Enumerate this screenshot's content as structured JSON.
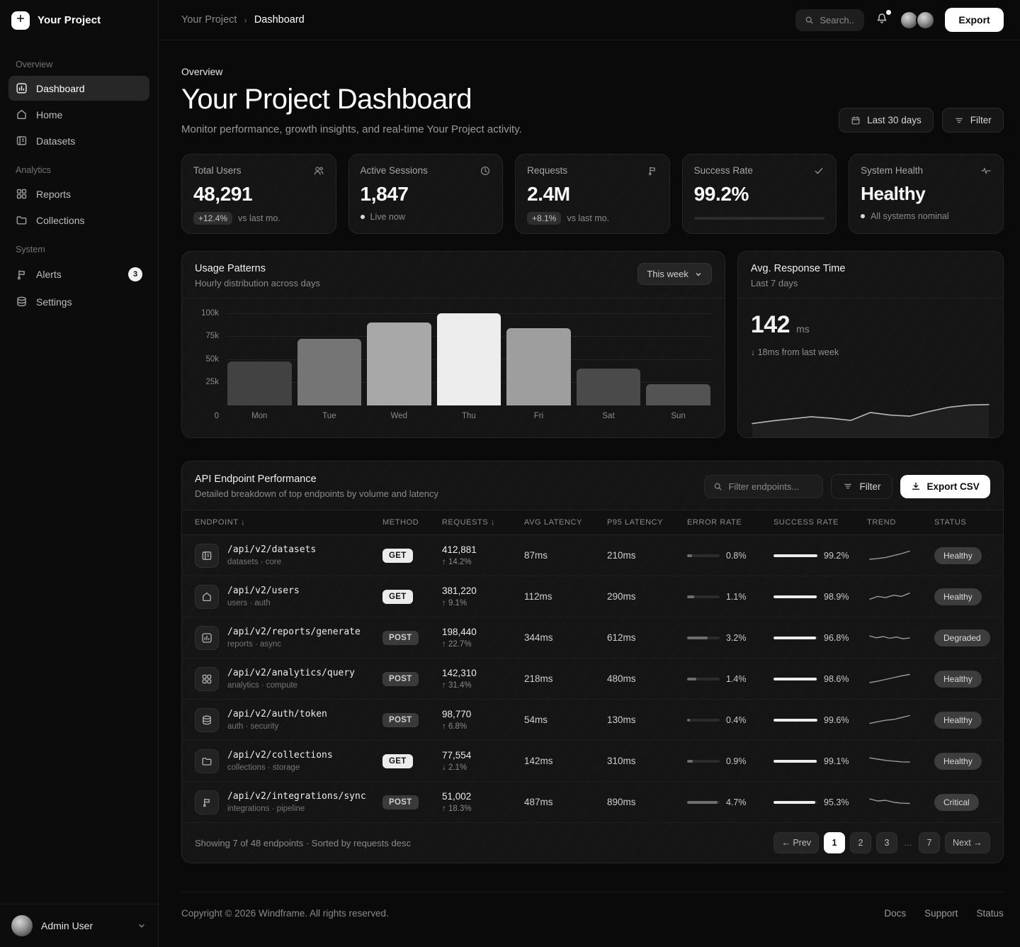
{
  "app": {
    "brand": "Your Project",
    "breadcrumb": {
      "root": "Your Project",
      "separator": "›",
      "current": "Dashboard"
    },
    "search_placeholder": "Search...",
    "export_label": "Export"
  },
  "sidebar": {
    "sections": [
      {
        "label": "Overview",
        "items": [
          {
            "label": "Dashboard",
            "icon": "dashboard-icon",
            "active": true
          },
          {
            "label": "Home",
            "icon": "home-icon"
          },
          {
            "label": "Datasets",
            "icon": "datasets-icon"
          }
        ]
      },
      {
        "label": "Analytics",
        "items": [
          {
            "label": "Reports",
            "icon": "reports-icon"
          },
          {
            "label": "Collections",
            "icon": "collections-icon"
          }
        ]
      },
      {
        "label": "System",
        "items": [
          {
            "label": "Alerts",
            "icon": "alerts-icon",
            "badge": "3"
          },
          {
            "label": "Settings",
            "icon": "settings-icon"
          }
        ]
      }
    ],
    "user": {
      "name": "Admin User"
    }
  },
  "page": {
    "eyebrow": "Overview",
    "title": "Your Project Dashboard",
    "subtitle": "Monitor performance, growth insights, and real-time Your Project activity.",
    "range_button": "Last 30 days",
    "filter_button": "Filter"
  },
  "kpis": [
    {
      "label": "Total Users",
      "value": "48,291",
      "badge": "+12.4%",
      "suffix": "vs last mo.",
      "icon": "users-icon"
    },
    {
      "label": "Active Sessions",
      "value": "1,847",
      "suffix": "Live now",
      "icon": "clock-icon"
    },
    {
      "label": "Requests",
      "value": "2.4M",
      "badge": "+8.1%",
      "suffix": "vs last mo.",
      "icon": "flag-icon"
    },
    {
      "label": "Success Rate",
      "value": "99.2%",
      "progress": 99.2,
      "icon": "check-icon"
    },
    {
      "label": "System Health",
      "value": "Healthy",
      "suffix": "All systems nominal",
      "icon": "activity-icon"
    }
  ],
  "usage_panel": {
    "title": "Usage Patterns",
    "subtitle": "Hourly distribution across days",
    "range": "This week"
  },
  "response_panel": {
    "title": "Avg. Response Time",
    "subtitle": "Last 7 days",
    "value": "142",
    "unit": "ms",
    "delta": "↓ 18ms from last week"
  },
  "chart_data": [
    {
      "type": "bar",
      "title": "Usage Patterns — Hourly distribution across days",
      "categories": [
        "Mon",
        "Tue",
        "Wed",
        "Thu",
        "Fri",
        "Sat",
        "Sun"
      ],
      "values": [
        48000,
        72000,
        90000,
        100000,
        84000,
        40000,
        23000
      ],
      "ylim": [
        0,
        100000
      ],
      "yticks": [
        "100k",
        "75k",
        "50k",
        "25k"
      ],
      "zero_label": "0",
      "bar_colors": [
        "#424242",
        "#757575",
        "#a8a8a8",
        "#ededed",
        "#9e9e9e",
        "#4a4a4a",
        "#535353"
      ],
      "highlight_index": 3,
      "grid": true,
      "legend": false
    },
    {
      "type": "line",
      "title": "Avg. Response Time (ms) — Last 7 days",
      "values": [
        118,
        123,
        127,
        131,
        128,
        124,
        139,
        134,
        132,
        141,
        149,
        153,
        154
      ],
      "ylim": [
        100,
        175
      ],
      "grid": false,
      "legend": false
    }
  ],
  "table": {
    "title": "API Endpoint Performance",
    "subtitle": "Detailed breakdown of top endpoints by volume and latency",
    "filter_placeholder": "Filter endpoints...",
    "filter_button": "Filter",
    "export_button": "Export CSV",
    "columns": [
      "ENDPOINT ↓",
      "METHOD",
      "REQUESTS ↓",
      "AVG LATENCY",
      "P95 LATENCY",
      "ERROR RATE",
      "SUCCESS RATE",
      "TREND",
      "STATUS"
    ],
    "rows": [
      {
        "endpoint": "/api/v2/datasets",
        "meta": "datasets · core",
        "icon": "stack-icon",
        "method": "GET",
        "requests": "412,881",
        "requests_delta": "↑ 14.2%",
        "avg_latency": "87ms",
        "p95_latency": "210ms",
        "error_rate": "0.8%",
        "error_pct": 0.8,
        "success_rate": "99.2%",
        "success_pct": 99.2,
        "trend": [
          2,
          2.6,
          3.5,
          5,
          6.6,
          8.6
        ],
        "status": "Healthy"
      },
      {
        "endpoint": "/api/v2/users",
        "meta": "users · auth",
        "icon": "home-icon",
        "method": "GET",
        "requests": "381,220",
        "requests_delta": "↑ 9.1%",
        "avg_latency": "112ms",
        "p95_latency": "290ms",
        "error_rate": "1.1%",
        "error_pct": 1.1,
        "success_rate": "98.9%",
        "success_pct": 98.9,
        "trend": [
          3,
          5.2,
          4.2,
          6.2,
          5.2,
          7.8
        ],
        "status": "Healthy"
      },
      {
        "endpoint": "/api/v2/reports/generate",
        "meta": "reports · async",
        "icon": "chart-icon",
        "method": "POST",
        "requests": "198,440",
        "requests_delta": "↑ 22.7%",
        "avg_latency": "344ms",
        "p95_latency": "612ms",
        "error_rate": "3.2%",
        "error_pct": 3.2,
        "success_rate": "96.8%",
        "success_pct": 96.8,
        "trend": [
          6.4,
          5,
          6,
          4.6,
          5.6,
          4.2,
          4.8
        ],
        "status": "Degraded"
      },
      {
        "endpoint": "/api/v2/analytics/query",
        "meta": "analytics · compute",
        "icon": "grid-icon",
        "method": "POST",
        "requests": "142,310",
        "requests_delta": "↑ 31.4%",
        "avg_latency": "218ms",
        "p95_latency": "480ms",
        "error_rate": "1.4%",
        "error_pct": 1.4,
        "success_rate": "98.6%",
        "success_pct": 98.6,
        "trend": [
          2,
          3.2,
          4.6,
          6,
          7.4,
          8.6
        ],
        "status": "Healthy"
      },
      {
        "endpoint": "/api/v2/auth/token",
        "meta": "auth · security",
        "icon": "database-icon",
        "method": "POST",
        "requests": "98,770",
        "requests_delta": "↑ 6.8%",
        "avg_latency": "54ms",
        "p95_latency": "130ms",
        "error_rate": "0.4%",
        "error_pct": 0.4,
        "success_rate": "99.6%",
        "success_pct": 99.6,
        "trend": [
          2.2,
          3.6,
          4.8,
          5.4,
          7,
          8.6
        ],
        "status": "Healthy"
      },
      {
        "endpoint": "/api/v2/collections",
        "meta": "collections · storage",
        "icon": "folder-icon",
        "method": "GET",
        "requests": "77,554",
        "requests_delta": "↓ 2.1%",
        "avg_latency": "142ms",
        "p95_latency": "310ms",
        "error_rate": "0.9%",
        "error_pct": 0.9,
        "success_rate": "99.1%",
        "success_pct": 99.1,
        "trend": [
          7.6,
          6.6,
          5.6,
          5,
          4.4,
          4.2
        ],
        "status": "Healthy"
      },
      {
        "endpoint": "/api/v2/integrations/sync",
        "meta": "integrations · pipeline",
        "icon": "flag-icon",
        "method": "POST",
        "requests": "51,002",
        "requests_delta": "↑ 18.3%",
        "avg_latency": "487ms",
        "p95_latency": "890ms",
        "error_rate": "4.7%",
        "error_pct": 4.7,
        "success_rate": "95.3%",
        "success_pct": 95.3,
        "trend": [
          7.6,
          6,
          6.6,
          5,
          4.2,
          4
        ],
        "status": "Critical"
      }
    ],
    "footer_text": "Showing 7 of 48 endpoints · Sorted by requests desc",
    "pagination": {
      "prev": "← Prev",
      "pages": [
        "1",
        "2",
        "3"
      ],
      "ellipsis": "…",
      "last_page": "7",
      "next": "Next →",
      "active": "1"
    }
  },
  "footer": {
    "copyright": "Copyright © 2026 Windframe. All rights reserved.",
    "links": [
      "Docs",
      "Support",
      "Status"
    ]
  },
  "colors": {
    "background": "#0a0a0a",
    "card": "#151515",
    "accent": "#ffffff",
    "muted_text": "#8a8a8a"
  }
}
